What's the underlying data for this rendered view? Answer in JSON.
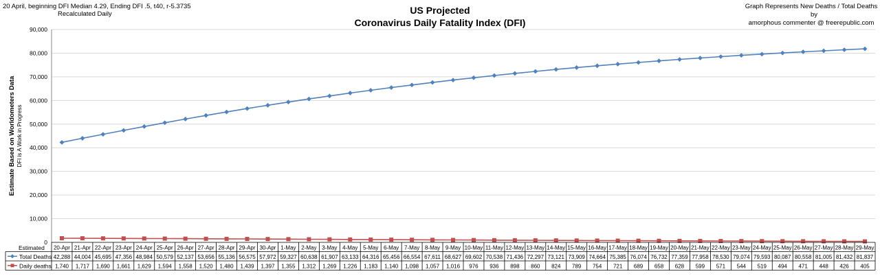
{
  "header": {
    "notes_line1": "20 April, beginning DFI  Median 4.29, Ending DFI .5,  t40, r-5.3735",
    "notes_line2": "Recalculated Daily",
    "title_line1": "US Projected",
    "title_line2": "Coronavirus Daily Fatality Index (DFI)",
    "right_line1": "Graph  Represents New Deaths / Total Deaths",
    "right_line2": "by",
    "right_line3": "amorphous commenter  @  freerepublic.com"
  },
  "colors": {
    "total_deaths": "#4F81BD",
    "daily_deaths": "#C0504D",
    "grid": "#D9D9D9"
  },
  "chart_data": {
    "type": "line",
    "ylabel": "Estimate Based on Worldometers Data",
    "ylabel2": "DFI is A Work in Progress",
    "ylim": [
      0,
      90000
    ],
    "yticks": [
      "0",
      "10,000",
      "20,000",
      "30,000",
      "40,000",
      "50,000",
      "60,000",
      "70,000",
      "80,000",
      "90,000"
    ],
    "grid": true,
    "legend": "data-table",
    "table_corner_label": "Estimated",
    "categories": [
      "20-Apr",
      "21-Apr",
      "22-Apr",
      "23-Apr",
      "24-Apr",
      "25-Apr",
      "26-Apr",
      "27-Apr",
      "28-Apr",
      "29-Apr",
      "30-Apr",
      "1-May",
      "2-May",
      "3-May",
      "4-May",
      "5-May",
      "6-May",
      "7-May",
      "8-May",
      "9-May",
      "10-May",
      "11-May",
      "12-May",
      "13-May",
      "14-May",
      "15-May",
      "16-May",
      "17-May",
      "18-May",
      "19-May",
      "20-May",
      "21-May",
      "22-May",
      "23-May",
      "24-May",
      "25-May",
      "26-May",
      "27-May",
      "28-May",
      "29-May"
    ],
    "series": [
      {
        "name": "Total Deaths",
        "values": [
          42288,
          44004,
          45695,
          47356,
          48984,
          50579,
          52137,
          53656,
          55136,
          56575,
          57972,
          59327,
          60638,
          61907,
          63133,
          64316,
          65456,
          66554,
          67611,
          68627,
          69602,
          70538,
          71436,
          72297,
          73121,
          73909,
          74664,
          75385,
          76074,
          76732,
          77359,
          77958,
          78530,
          79074,
          79593,
          80087,
          80558,
          81005,
          81432,
          81837
        ],
        "labels": [
          "42,288",
          "44,004",
          "45,695",
          "47,356",
          "48,984",
          "50,579",
          "52,137",
          "53,656",
          "55,136",
          "56,575",
          "57,972",
          "59,327",
          "60,638",
          "61,907",
          "63,133",
          "64,316",
          "65,456",
          "66,554",
          "67,611",
          "68,627",
          "69,602",
          "70,538",
          "71,436",
          "72,297",
          "73,121",
          "73,909",
          "74,664",
          "75,385",
          "76,074",
          "76,732",
          "77,359",
          "77,958",
          "78,530",
          "79,074",
          "79,593",
          "80,087",
          "80,558",
          "81,005",
          "81,432",
          "81,837"
        ]
      },
      {
        "name": "Daily deaths",
        "values": [
          1740,
          1717,
          1690,
          1661,
          1629,
          1594,
          1558,
          1520,
          1480,
          1439,
          1397,
          1355,
          1312,
          1269,
          1226,
          1183,
          1140,
          1098,
          1057,
          1016,
          976,
          936,
          898,
          860,
          824,
          789,
          754,
          721,
          689,
          658,
          628,
          599,
          571,
          544,
          519,
          494,
          471,
          448,
          426,
          405
        ],
        "labels": [
          "1,740",
          "1,717",
          "1,690",
          "1,661",
          "1,629",
          "1,594",
          "1,558",
          "1,520",
          "1,480",
          "1,439",
          "1,397",
          "1,355",
          "1,312",
          "1,269",
          "1,226",
          "1,183",
          "1,140",
          "1,098",
          "1,057",
          "1,016",
          "976",
          "936",
          "898",
          "860",
          "824",
          "789",
          "754",
          "721",
          "689",
          "658",
          "628",
          "599",
          "571",
          "544",
          "519",
          "494",
          "471",
          "448",
          "426",
          "405"
        ]
      }
    ]
  }
}
